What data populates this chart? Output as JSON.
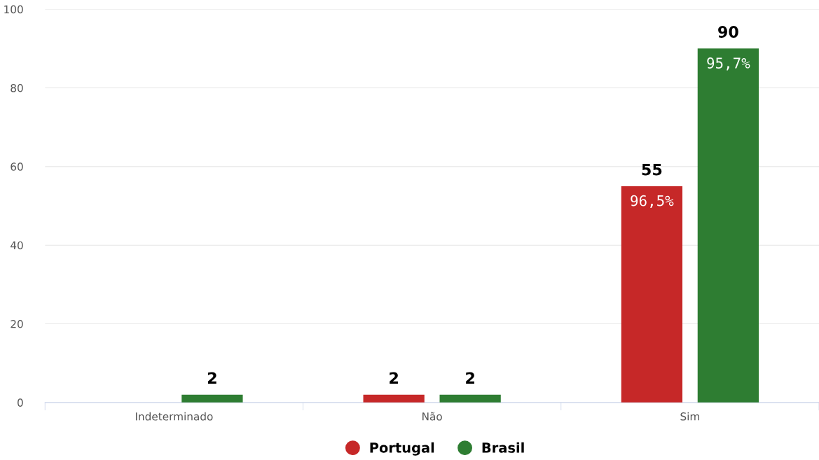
{
  "chart_data": {
    "type": "bar",
    "categories": [
      "Indeterminado",
      "Não",
      "Sim"
    ],
    "series": [
      {
        "name": "Portugal",
        "color": "#c62828",
        "values": [
          null,
          2,
          55
        ]
      },
      {
        "name": "Brasil",
        "color": "#2e7d32",
        "values": [
          2,
          2,
          90
        ]
      }
    ],
    "ylim": [
      0,
      100
    ],
    "yticks": [
      0,
      20,
      40,
      60,
      80,
      100
    ],
    "grid": "y",
    "legend": "bottom",
    "data_labels": true,
    "annotations": [
      "96,5%",
      "95,7%"
    ]
  }
}
